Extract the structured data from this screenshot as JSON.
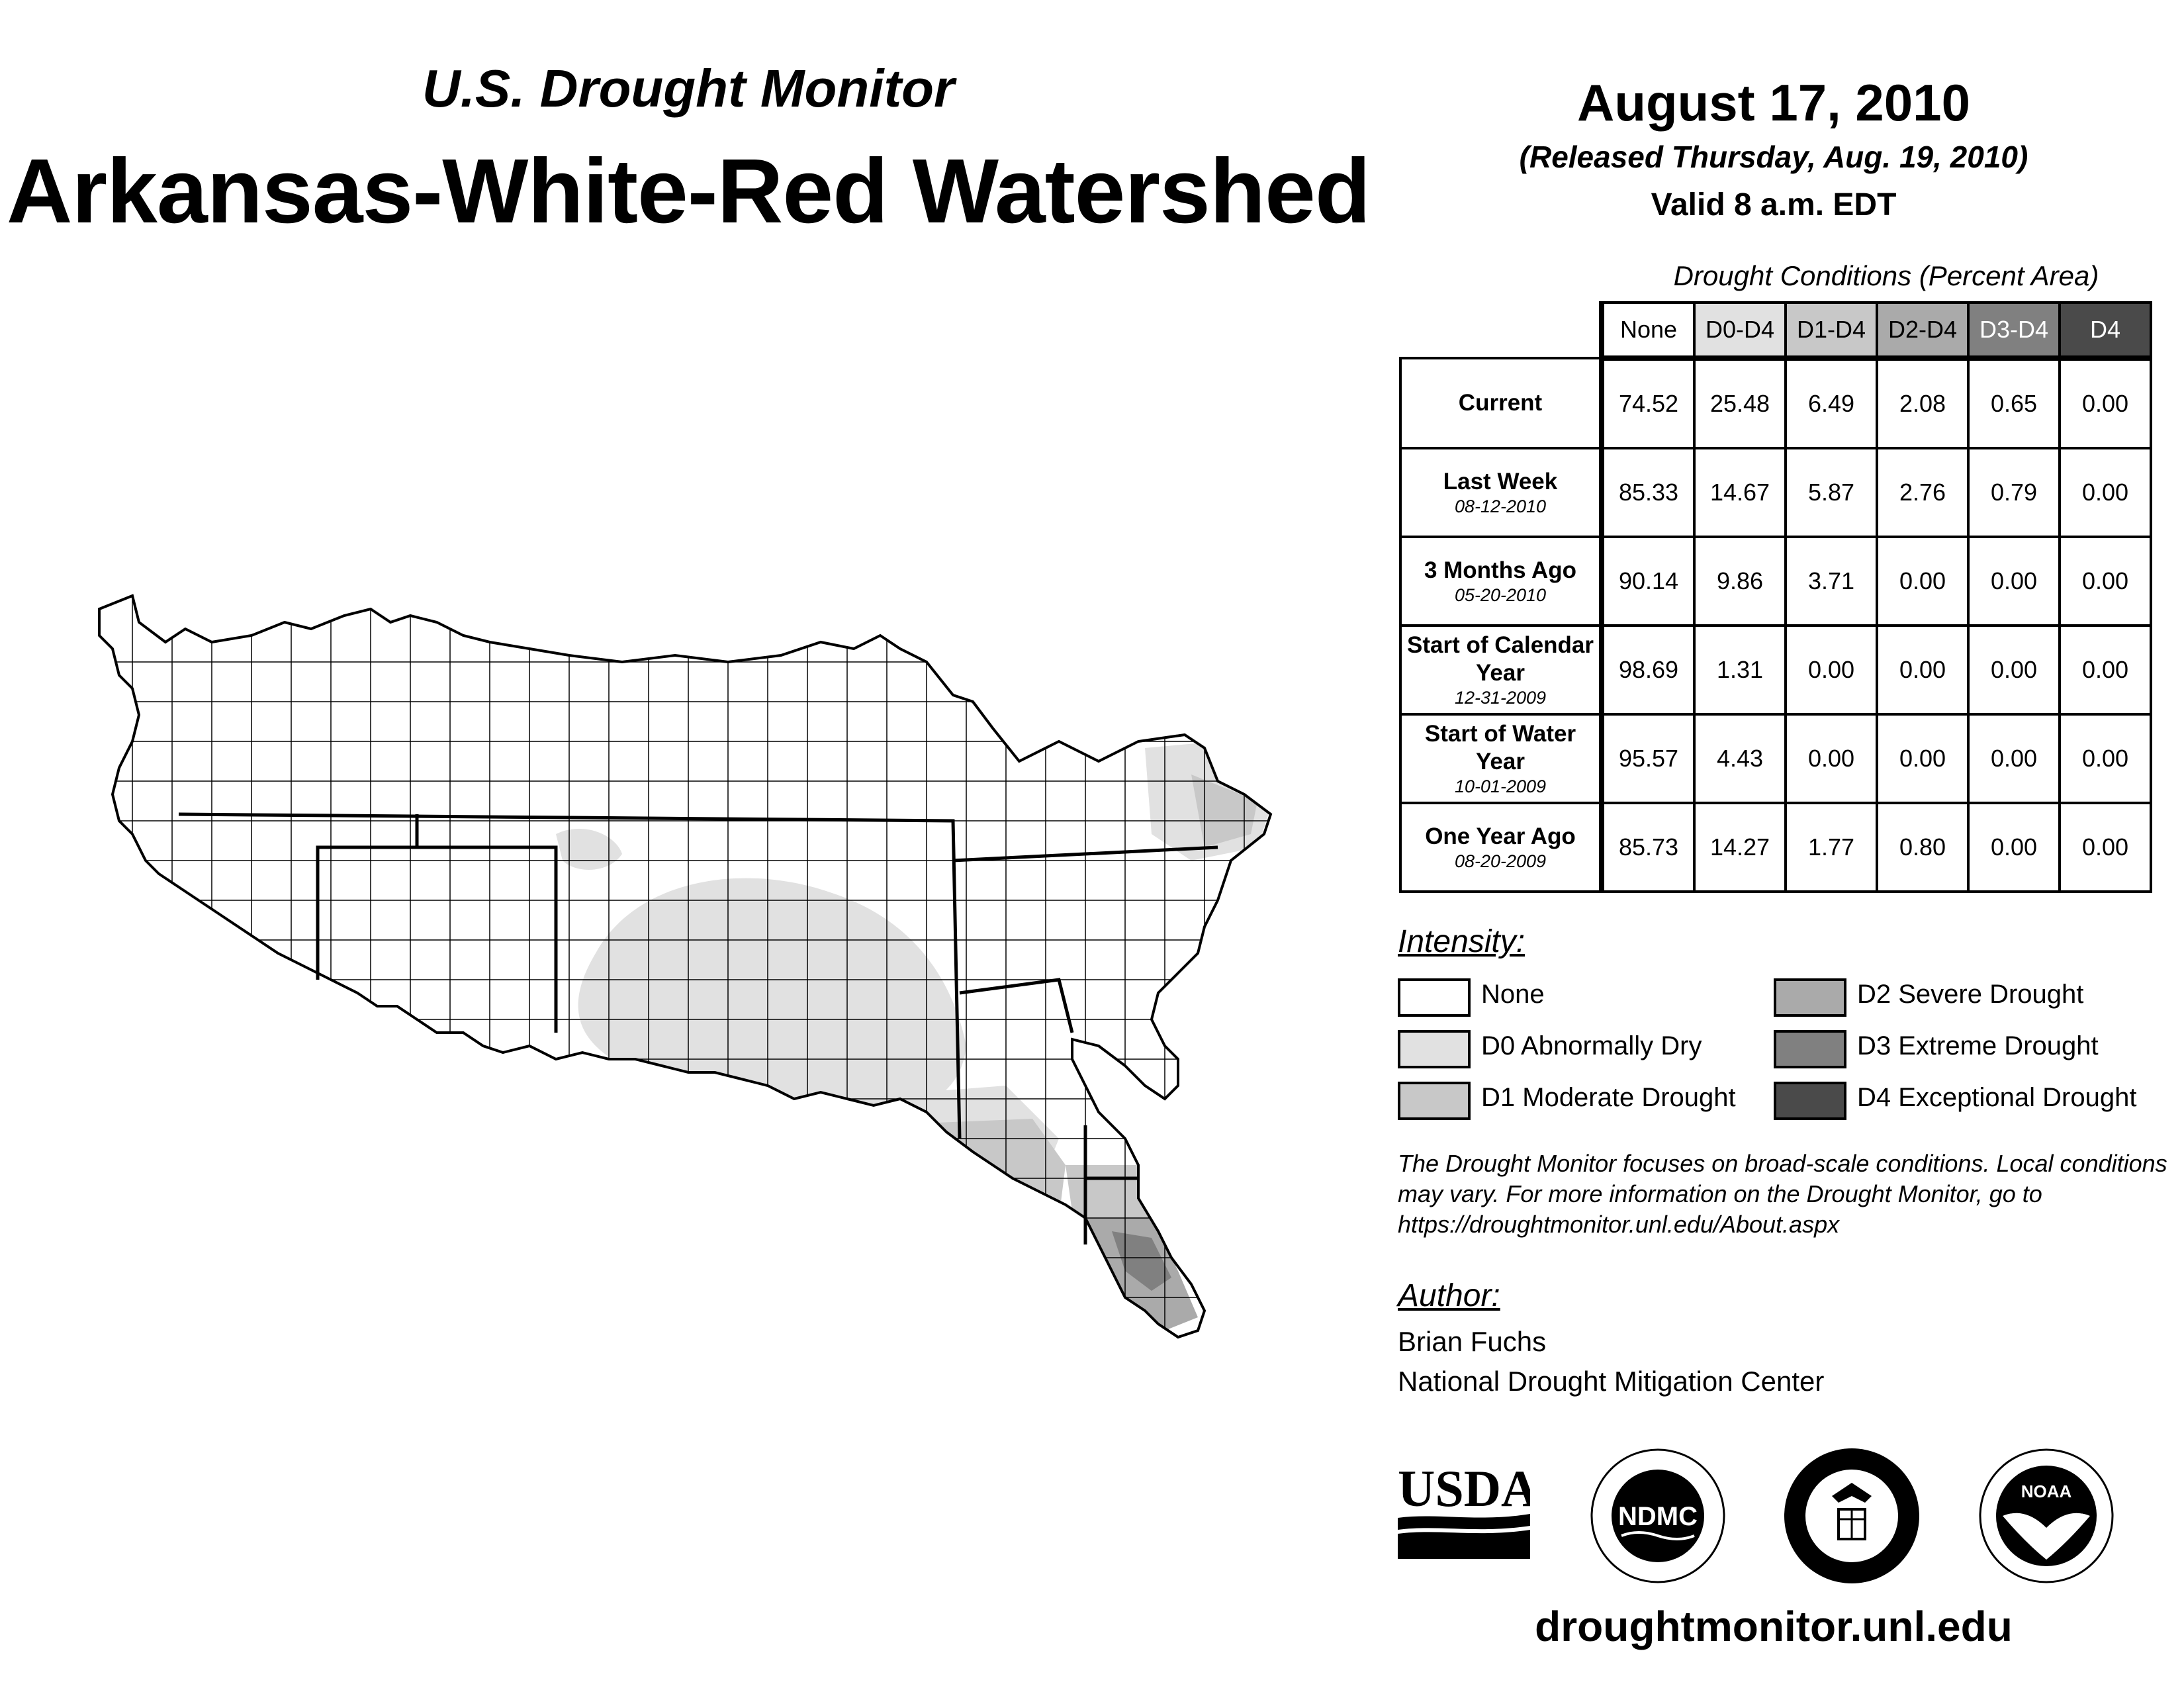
{
  "header": {
    "subtitle": "U.S. Drought Monitor",
    "title": "Arkansas-White-Red Watershed",
    "date": "August 17, 2010",
    "released": "(Released Thursday, Aug. 19, 2010)",
    "valid": "Valid 8 a.m. EDT"
  },
  "table": {
    "caption": "Drought Conditions (Percent Area)",
    "columns": [
      "None",
      "D0-D4",
      "D1-D4",
      "D2-D4",
      "D3-D4",
      "D4"
    ],
    "rows": [
      {
        "label": "Current",
        "date": "",
        "values": [
          "74.52",
          "25.48",
          "6.49",
          "2.08",
          "0.65",
          "0.00"
        ]
      },
      {
        "label": "Last Week",
        "date": "08-12-2010",
        "values": [
          "85.33",
          "14.67",
          "5.87",
          "2.76",
          "0.79",
          "0.00"
        ]
      },
      {
        "label": "3 Months Ago",
        "date": "05-20-2010",
        "values": [
          "90.14",
          "9.86",
          "3.71",
          "0.00",
          "0.00",
          "0.00"
        ]
      },
      {
        "label": "Start of Calendar Year",
        "date": "12-31-2009",
        "values": [
          "98.69",
          "1.31",
          "0.00",
          "0.00",
          "0.00",
          "0.00"
        ]
      },
      {
        "label": "Start of Water Year",
        "date": "10-01-2009",
        "values": [
          "95.57",
          "4.43",
          "0.00",
          "0.00",
          "0.00",
          "0.00"
        ]
      },
      {
        "label": "One Year Ago",
        "date": "08-20-2009",
        "values": [
          "85.73",
          "14.27",
          "1.77",
          "0.80",
          "0.00",
          "0.00"
        ]
      }
    ]
  },
  "legend": {
    "title": "Intensity:",
    "items": [
      {
        "label": "None",
        "color": "#ffffff"
      },
      {
        "label": "D0 Abnormally Dry",
        "color": "#e1e1e1"
      },
      {
        "label": "D1 Moderate Drought",
        "color": "#c8c8c8"
      },
      {
        "label": "D2 Severe Drought",
        "color": "#aaaaaa"
      },
      {
        "label": "D3 Extreme Drought",
        "color": "#808080"
      },
      {
        "label": "D4 Exceptional Drought",
        "color": "#4a4a4a"
      }
    ]
  },
  "note": "The Drought Monitor focuses on broad-scale conditions. Local conditions may vary. For more information on the Drought Monitor, go to https://droughtmonitor.unl.edu/About.aspx",
  "author": {
    "label": "Author:",
    "name": "Brian Fuchs",
    "organization": "National Drought Mitigation Center"
  },
  "logos": {
    "usda": "USDA",
    "ndmc": "NDMC",
    "noaa": "NOAA"
  },
  "website": "droughtmonitor.unl.edu",
  "header_colors": {
    "None": "#ffffff",
    "D0-D4": "#e1e1e1",
    "D1-D4": "#c8c8c8",
    "D2-D4": "#aaaaaa",
    "D3-D4": "#808080",
    "D4": "#4a4a4a"
  }
}
